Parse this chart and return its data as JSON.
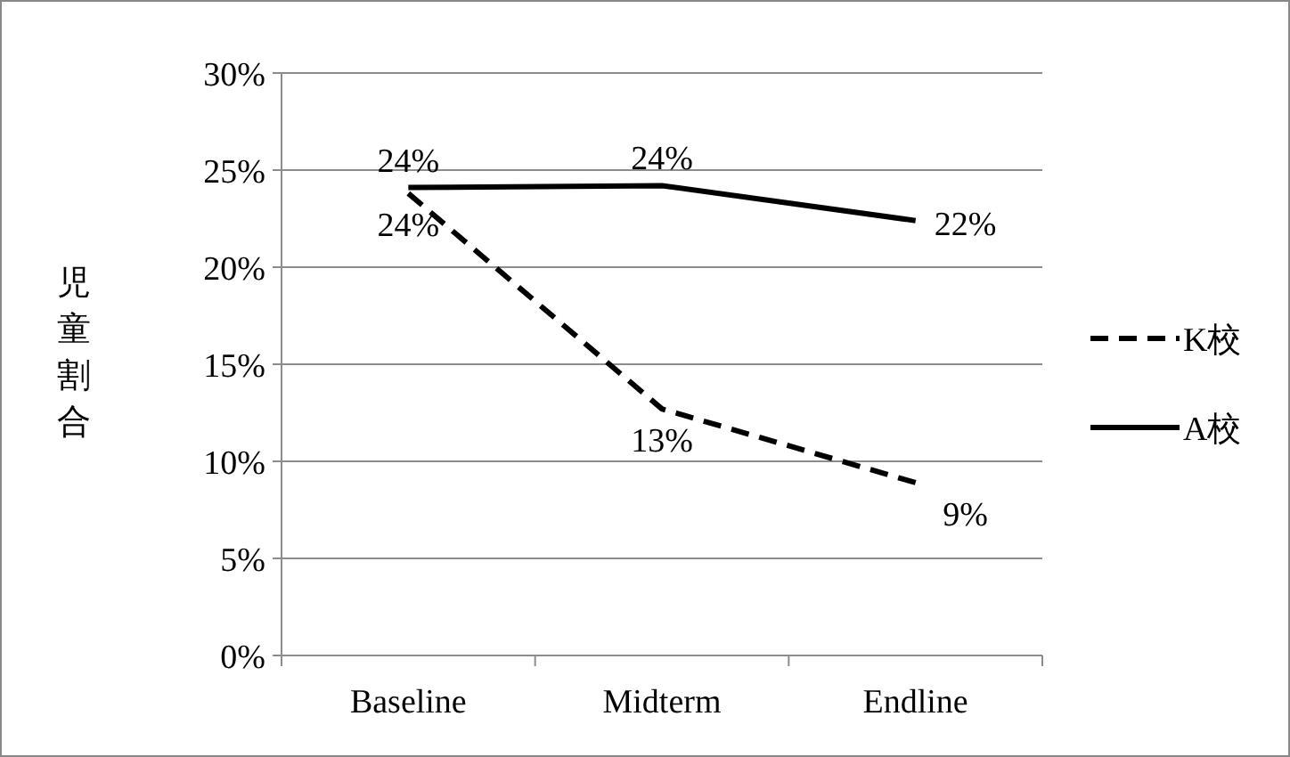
{
  "chart_data": {
    "type": "line",
    "ylabel": "児童割合",
    "categories": [
      "Baseline",
      "Midterm",
      "Endline"
    ],
    "series": [
      {
        "name": "K校",
        "color": "#000000",
        "line_style": "dashed",
        "values": [
          23.8,
          12.7,
          8.9
        ],
        "value_labels": [
          "24%",
          "13%",
          "9%"
        ]
      },
      {
        "name": "A校",
        "color": "#000000",
        "line_style": "solid",
        "values": [
          24.1,
          24.2,
          22.4
        ],
        "value_labels": [
          "24%",
          "24%",
          "22%"
        ]
      }
    ],
    "ylim": [
      0,
      30
    ],
    "yticks": [
      {
        "value": 0,
        "label": "0%"
      },
      {
        "value": 5,
        "label": "5%"
      },
      {
        "value": 10,
        "label": "10%"
      },
      {
        "value": 15,
        "label": "15%"
      },
      {
        "value": 20,
        "label": "20%"
      },
      {
        "value": 25,
        "label": "25%"
      },
      {
        "value": 30,
        "label": "30%"
      }
    ],
    "grid": "y",
    "legend": "right"
  }
}
